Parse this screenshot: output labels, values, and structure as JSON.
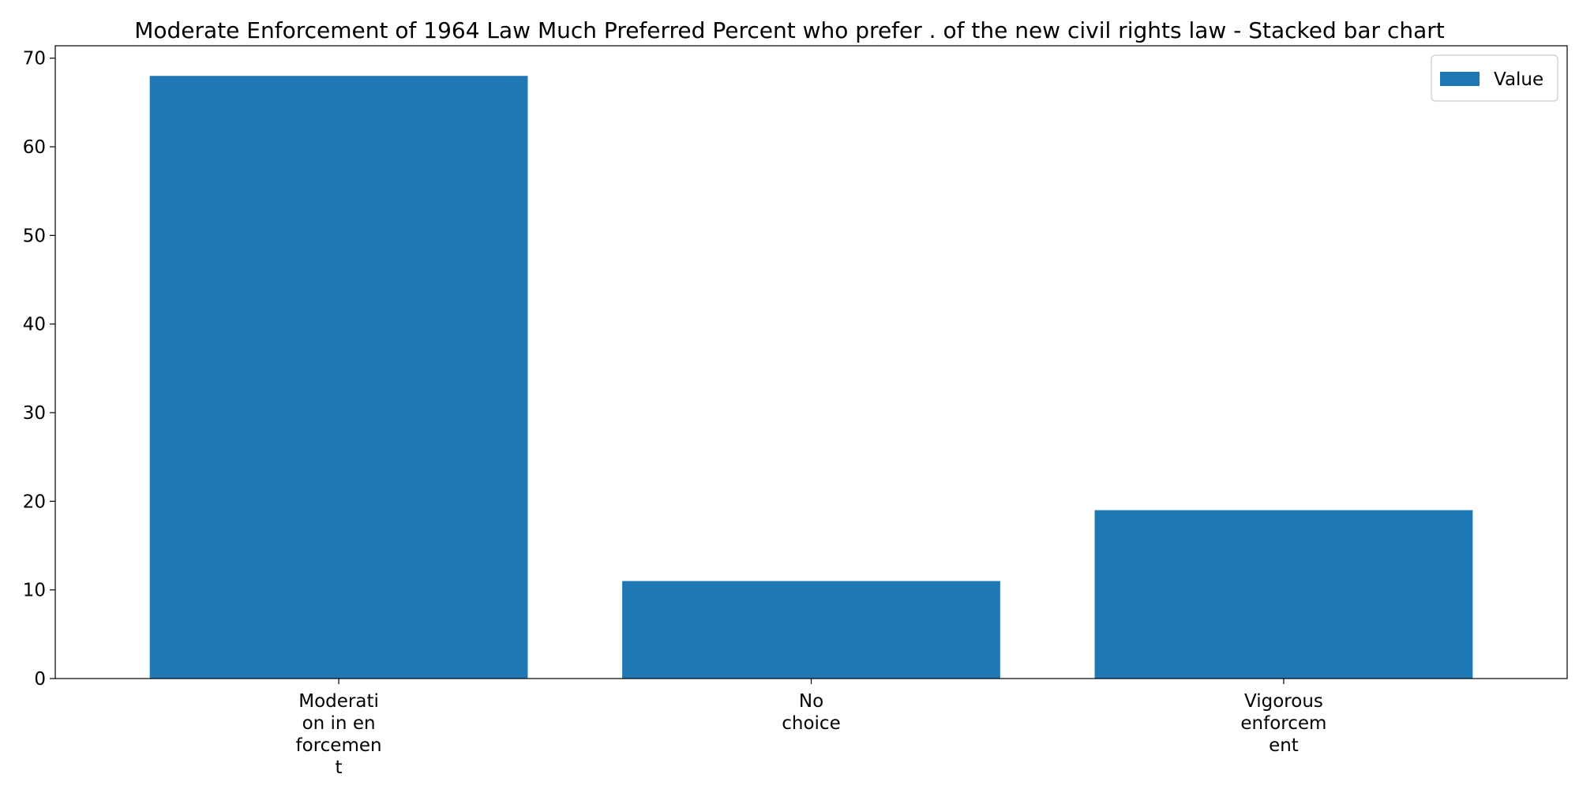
{
  "chart_data": {
    "type": "bar",
    "title": "Moderate Enforcement of 1964 Law Much Preferred Percent who prefer . of the new civil rights law  - Stacked bar chart",
    "xlabel": "",
    "ylabel": "",
    "categories": [
      [
        "Moderati",
        "on in en",
        "forcemen",
        "t"
      ],
      [
        "No",
        "choice"
      ],
      [
        "Vigorous",
        "enforcem",
        "ent"
      ]
    ],
    "series": [
      {
        "name": "Value",
        "color": "#1f77b4",
        "values": [
          68,
          11,
          19
        ]
      }
    ],
    "ylim": [
      0,
      71.4
    ],
    "yticks": [
      0,
      10,
      20,
      30,
      40,
      50,
      60,
      70
    ],
    "legend": {
      "position": "top-right"
    },
    "grid": false
  }
}
